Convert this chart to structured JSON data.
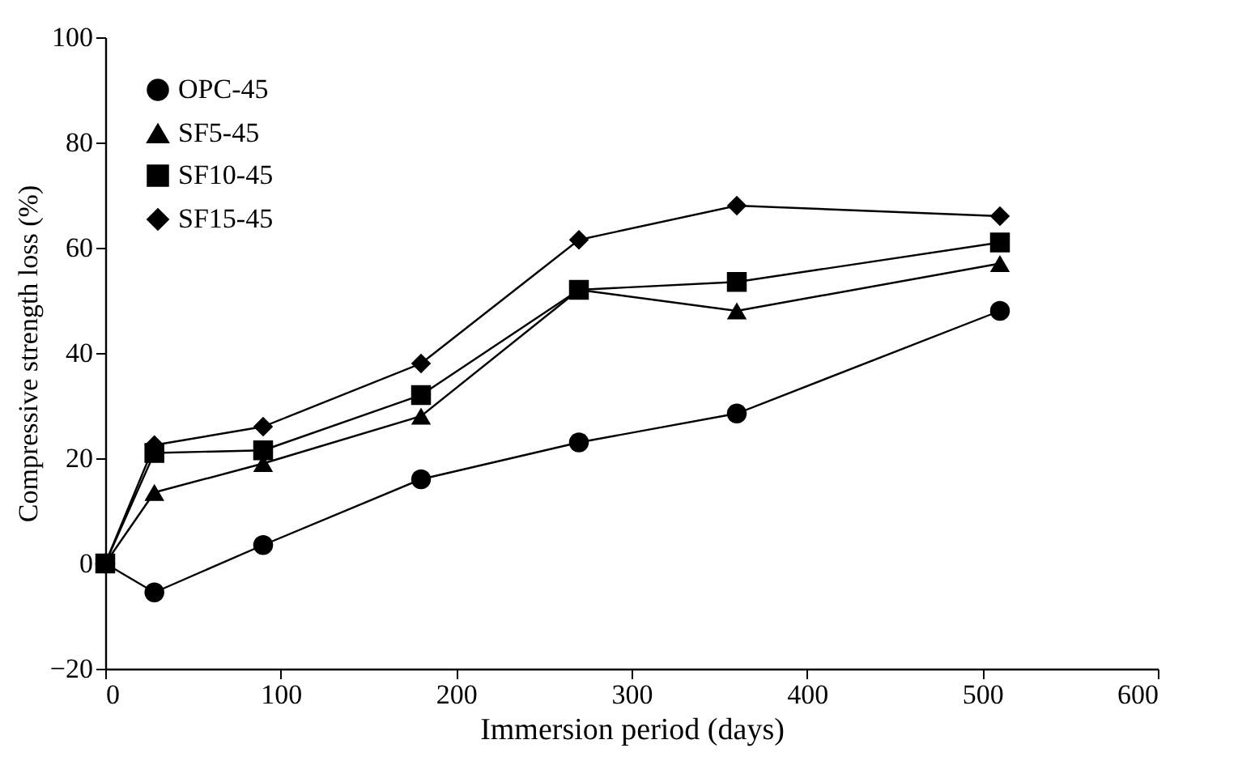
{
  "chart_data": {
    "type": "line",
    "xlabel": "Immersion period (days)",
    "ylabel": "Compressive strength loss (%)",
    "x": [
      0,
      28,
      90,
      180,
      270,
      360,
      510
    ],
    "xlim": [
      0,
      600
    ],
    "xticks": [
      0,
      100,
      200,
      300,
      400,
      500,
      600
    ],
    "ylim": [
      -20,
      100
    ],
    "yticks": [
      -20,
      0,
      20,
      40,
      60,
      80,
      100
    ],
    "legend": "top left",
    "line_style": "solid",
    "series": [
      {
        "name": "OPC-45",
        "color": "#000000",
        "marker": "circle",
        "values": [
          0,
          -5.5,
          3.5,
          16,
          23,
          28.5,
          48
        ]
      },
      {
        "name": "SF5-45",
        "color": "#000000",
        "marker": "triangle",
        "values": [
          0,
          13.5,
          19,
          28,
          52,
          48,
          57
        ]
      },
      {
        "name": "SF10-45",
        "color": "#000000",
        "marker": "square",
        "values": [
          0,
          21,
          21.5,
          32,
          52,
          53.5,
          61
        ]
      },
      {
        "name": "SF15-45",
        "color": "#000000",
        "marker": "diamond",
        "values": [
          0,
          22.5,
          26,
          38,
          61.5,
          68,
          66
        ]
      }
    ]
  }
}
